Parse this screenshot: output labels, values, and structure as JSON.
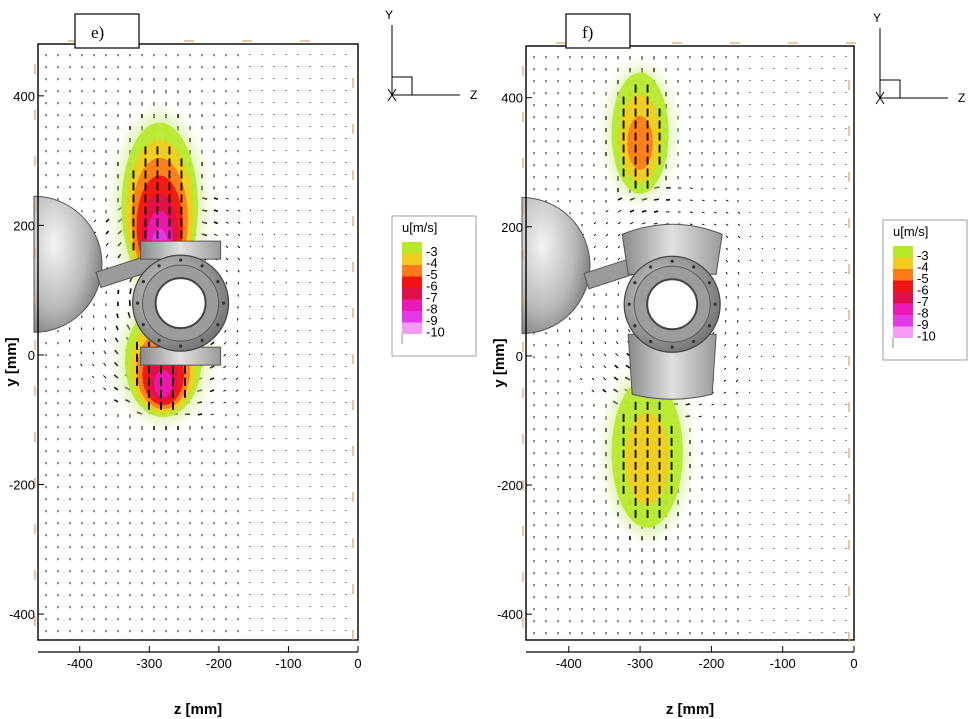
{
  "colors": {
    "u_levels": [
      "#b6e82a",
      "#f2cb1e",
      "#ff7a1a",
      "#f21414",
      "#e0104a",
      "#ec1ab4",
      "#e23ae8",
      "#f49cf4",
      "#ffffff"
    ],
    "halo": "#d6ee9a",
    "frame": "#000000",
    "dashes": "#e0a060",
    "arrows": "#000000",
    "sphere": "#a8a8a8",
    "hub": "#8a8a8a"
  },
  "chart_data": [
    {
      "type": "vector-contour",
      "panel_label": "e)",
      "xlabel": "z [mm]",
      "ylabel": "y [mm]",
      "x_ticks": [
        "-400",
        "-300",
        "-200",
        "-100",
        "0"
      ],
      "y_ticks": [
        "400",
        "200",
        "0",
        "-200",
        "-400"
      ],
      "xlim": [
        -460,
        0
      ],
      "ylim": [
        -440,
        480
      ],
      "triad": {
        "up": "Y",
        "right": "Z"
      },
      "legend": {
        "title": "u[m/s]",
        "levels": [
          -3,
          -4,
          -5,
          -6,
          -7,
          -8,
          -9,
          -10
        ],
        "labels": [
          "-3",
          "-4",
          "-5",
          "-6",
          "-7",
          "-8",
          "-9",
          "-10"
        ]
      },
      "regions": [
        {
          "z": -285,
          "y": 230,
          "rz": 55,
          "ry": 120,
          "min_u": -9.5
        },
        {
          "z": -280,
          "y": -10,
          "rz": 55,
          "ry": 80,
          "min_u": -8.5
        }
      ],
      "rotor": {
        "hub_z": -255,
        "hub_y": 80,
        "sphere_z": -460,
        "sphere_y": 140,
        "blades_deployed": false
      }
    },
    {
      "type": "vector-contour",
      "panel_label": "f)",
      "xlabel": "z [mm]",
      "ylabel": "y [mm]",
      "x_ticks": [
        "-400",
        "-300",
        "-200",
        "-100",
        "0"
      ],
      "y_ticks": [
        "400",
        "200",
        "0",
        "-200",
        "-400"
      ],
      "xlim": [
        -460,
        0
      ],
      "ylim": [
        -440,
        480
      ],
      "triad": {
        "up": "Y",
        "right": "Z"
      },
      "legend": {
        "title": "u[m/s]",
        "levels": [
          -3,
          -4,
          -5,
          -6,
          -7,
          -8,
          -9,
          -10
        ],
        "labels": [
          "-3",
          "-4",
          "-5",
          "-6",
          "-7",
          "-8",
          "-9",
          "-10"
        ]
      },
      "regions": [
        {
          "z": -300,
          "y": 345,
          "rz": 40,
          "ry": 85,
          "min_u": -5.5
        },
        {
          "z": -290,
          "y": -150,
          "rz": 50,
          "ry": 105,
          "min_u": -4.6
        }
      ],
      "rotor": {
        "hub_z": -255,
        "hub_y": 80,
        "sphere_z": -460,
        "sphere_y": 140,
        "blades_deployed": true
      }
    }
  ]
}
